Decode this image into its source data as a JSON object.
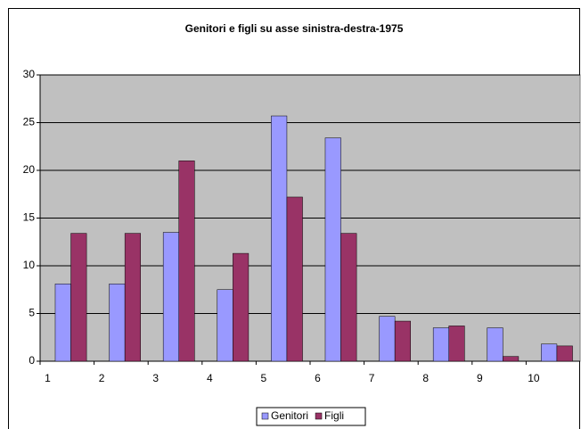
{
  "chart_data": {
    "type": "bar",
    "title": "Genitori e figli su asse sinistra-destra-1975",
    "categories": [
      "1",
      "2",
      "3",
      "4",
      "5",
      "6",
      "7",
      "8",
      "9",
      "10"
    ],
    "series": [
      {
        "name": "Genitori",
        "color": "#9999ff",
        "values": [
          8.1,
          8.1,
          13.5,
          7.5,
          25.7,
          23.4,
          4.7,
          3.5,
          3.5,
          1.8
        ]
      },
      {
        "name": "Figli",
        "color": "#993366",
        "values": [
          13.4,
          13.4,
          21.0,
          11.3,
          17.2,
          13.4,
          4.2,
          3.7,
          0.5,
          1.6
        ]
      }
    ],
    "ylim": [
      0,
      30
    ],
    "yticks": [
      0,
      5,
      10,
      15,
      20,
      25,
      30
    ],
    "grid": true,
    "legend": "bottom"
  }
}
